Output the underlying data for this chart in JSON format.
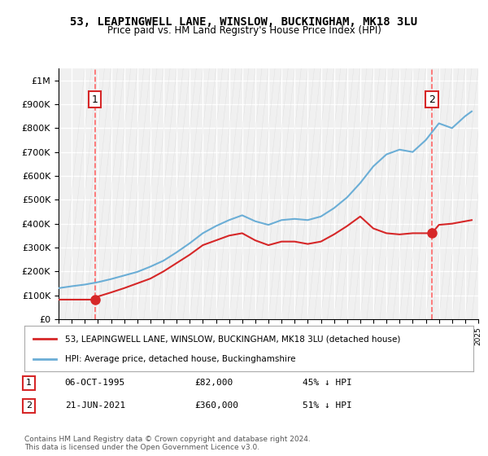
{
  "title": "53, LEAPINGWELL LANE, WINSLOW, BUCKINGHAM, MK18 3LU",
  "subtitle": "Price paid vs. HM Land Registry's House Price Index (HPI)",
  "legend_line1": "53, LEAPINGWELL LANE, WINSLOW, BUCKINGHAM, MK18 3LU (detached house)",
  "legend_line2": "HPI: Average price, detached house, Buckinghamshire",
  "transaction1_label": "1",
  "transaction1_date": "06-OCT-1995",
  "transaction1_price": "£82,000",
  "transaction1_hpi": "45% ↓ HPI",
  "transaction1_year": 1995.76,
  "transaction1_value": 82000,
  "transaction2_label": "2",
  "transaction2_date": "21-JUN-2021",
  "transaction2_price": "£360,000",
  "transaction2_hpi": "51% ↓ HPI",
  "transaction2_year": 2021.47,
  "transaction2_value": 360000,
  "footnote": "Contains HM Land Registry data © Crown copyright and database right 2024.\nThis data is licensed under the Open Government Licence v3.0.",
  "hpi_color": "#6baed6",
  "price_color": "#d62728",
  "dashed_line_color": "#ff6666",
  "background_color": "#ffffff",
  "plot_bg_color": "#f0f0f0",
  "grid_color": "#ffffff",
  "ylim_min": 0,
  "ylim_max": 1050000,
  "xlim_min": 1993,
  "xlim_max": 2025,
  "hpi_years": [
    1993,
    1994,
    1995,
    1996,
    1997,
    1998,
    1999,
    2000,
    2001,
    2002,
    2003,
    2004,
    2005,
    2006,
    2007,
    2008,
    2009,
    2010,
    2011,
    2012,
    2013,
    2014,
    2015,
    2016,
    2017,
    2018,
    2019,
    2020,
    2021,
    2022,
    2023,
    2024,
    2024.5
  ],
  "hpi_values": [
    130000,
    138000,
    145000,
    155000,
    168000,
    183000,
    198000,
    220000,
    245000,
    280000,
    318000,
    360000,
    390000,
    415000,
    435000,
    410000,
    395000,
    415000,
    420000,
    415000,
    430000,
    465000,
    510000,
    570000,
    640000,
    690000,
    710000,
    700000,
    750000,
    820000,
    800000,
    850000,
    870000
  ],
  "price_years": [
    1993,
    1994,
    1995,
    1995.76,
    1996,
    1997,
    1998,
    1999,
    2000,
    2001,
    2002,
    2003,
    2004,
    2005,
    2006,
    2007,
    2008,
    2009,
    2010,
    2011,
    2012,
    2013,
    2014,
    2015,
    2016,
    2017,
    2018,
    2019,
    2020,
    2021,
    2021.47,
    2022,
    2023,
    2024,
    2024.5
  ],
  "price_values": [
    82000,
    82000,
    82000,
    82000,
    95000,
    112000,
    130000,
    150000,
    170000,
    200000,
    235000,
    270000,
    310000,
    330000,
    350000,
    360000,
    330000,
    310000,
    325000,
    325000,
    315000,
    325000,
    355000,
    390000,
    430000,
    380000,
    360000,
    355000,
    360000,
    360000,
    360000,
    395000,
    400000,
    410000,
    415000
  ]
}
